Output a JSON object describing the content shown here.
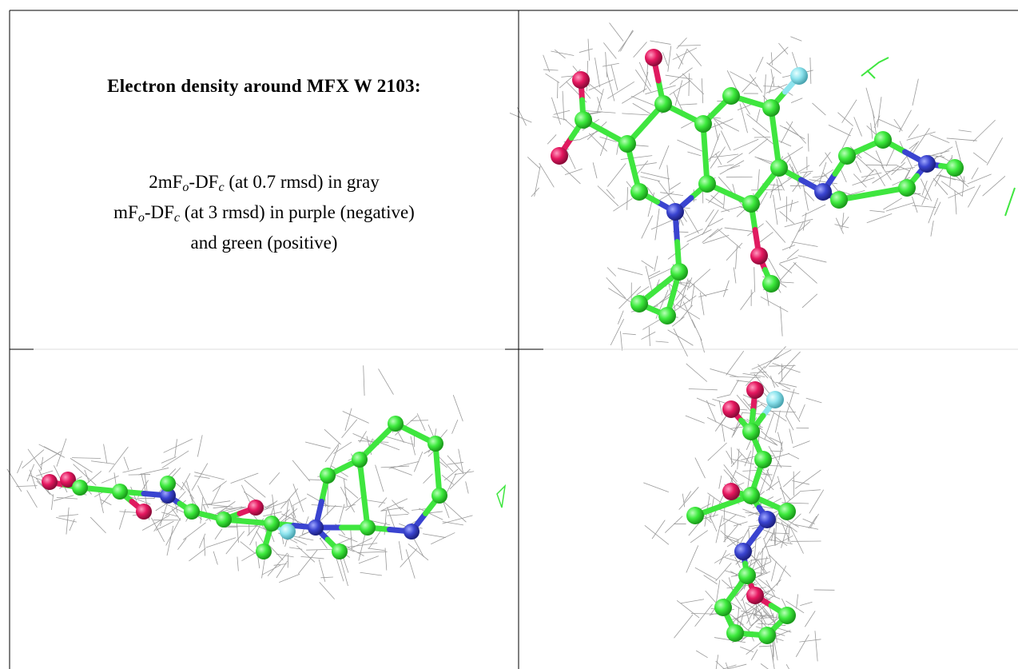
{
  "title": "Electron density around MFX W 2103:",
  "legend_lines": [
    [
      "2mF",
      "o",
      "-DF",
      "c",
      " (at 0.7 rmsd) in gray"
    ],
    [
      "mF",
      "o",
      "-DF",
      "c",
      " (at 3 rmsd) in purple (negative)"
    ],
    [
      "and green (positive)"
    ]
  ]
}
